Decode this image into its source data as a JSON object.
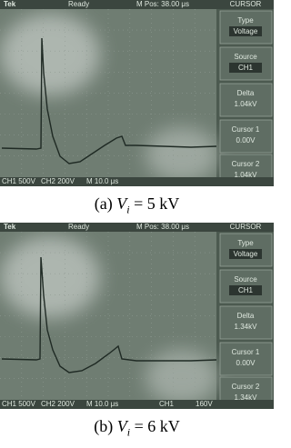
{
  "panels": [
    {
      "header": {
        "brand": "Tek",
        "status": "Ready",
        "position": "M Pos: 38.00 μs",
        "mode": "CURSOR"
      },
      "menu": [
        {
          "label": "Type",
          "value": "Voltage"
        },
        {
          "label": "Source",
          "value": "CH1"
        },
        {
          "label": "Delta",
          "value": "1.04kV"
        },
        {
          "label": "Cursor 1",
          "value": "0.00V"
        },
        {
          "label": "Cursor 2",
          "value": "1.04kV"
        }
      ],
      "footer": [
        "CH1 500V",
        "CH2 200V",
        "M 10.0 μs"
      ],
      "caption": {
        "label": "(a)",
        "variable": "V",
        "subscript": "i",
        "equation": "= 5 kV"
      }
    },
    {
      "header": {
        "brand": "Tek",
        "status": "Ready",
        "position": "M Pos: 38.00 μs",
        "mode": "CURSOR"
      },
      "menu": [
        {
          "label": "Type",
          "value": "Voltage"
        },
        {
          "label": "Source",
          "value": "CH1"
        },
        {
          "label": "Delta",
          "value": "1.34kV"
        },
        {
          "label": "Cursor 1",
          "value": "0.00V"
        },
        {
          "label": "Cursor 2",
          "value": "1.34kV"
        }
      ],
      "footer": [
        "CH1 500V",
        "CH2 200V",
        "M 10.0 μs",
        "CH1",
        "160V"
      ],
      "caption": {
        "label": "(b)",
        "variable": "V",
        "subscript": "i",
        "equation": "= 6 kV"
      }
    }
  ]
}
